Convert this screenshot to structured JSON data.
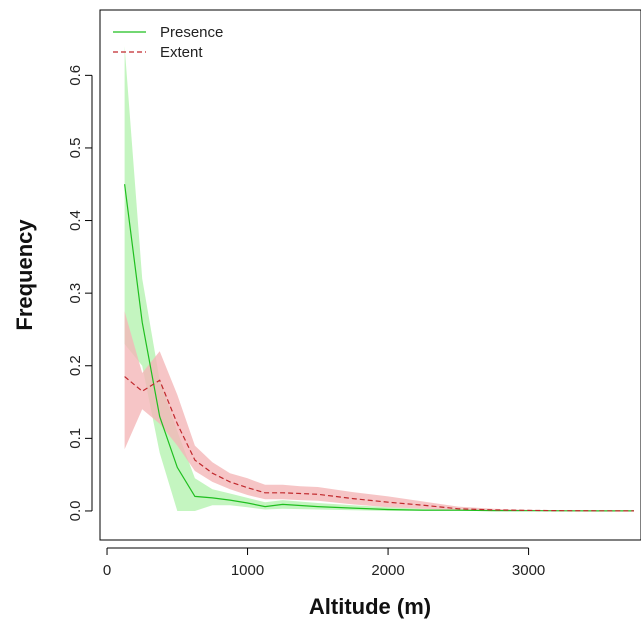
{
  "chart_data": {
    "type": "line",
    "xlabel": "Altitude (m)",
    "ylabel": "Frequency",
    "xlim": [
      -50,
      3800
    ],
    "ylim": [
      -0.04,
      0.69
    ],
    "xticks": [
      0,
      1000,
      2000,
      3000
    ],
    "yticks": [
      0.0,
      0.1,
      0.2,
      0.3,
      0.4,
      0.5,
      0.6
    ],
    "xtick_labels": [
      "0",
      "1000",
      "2000",
      "3000"
    ],
    "ytick_labels": [
      "0.0",
      "0.1",
      "0.2",
      "0.3",
      "0.4",
      "0.5",
      "0.6"
    ],
    "grid": false,
    "legend_position": "top-left",
    "series": [
      {
        "name": "Presence",
        "color": "#1fbf1f",
        "band_color": "#b5f2b0",
        "line_style": "solid",
        "x": [
          125,
          250,
          375,
          500,
          625,
          750,
          875,
          1000,
          1125,
          1250,
          1500,
          1750,
          2000,
          2250,
          2500,
          2750,
          3000,
          3250,
          3500,
          3750
        ],
        "y": [
          0.45,
          0.26,
          0.13,
          0.06,
          0.02,
          0.018,
          0.015,
          0.011,
          0.006,
          0.009,
          0.006,
          0.004,
          0.002,
          0.001,
          0.001,
          0.0005,
          0.0003,
          0.0002,
          0.0001,
          0.0001
        ],
        "lower": [
          0.23,
          0.2,
          0.08,
          0.0,
          0.0,
          0.008,
          0.008,
          0.005,
          0.002,
          0.003,
          0.002,
          0.001,
          0.0,
          0.0,
          0.0,
          0.0,
          0.0,
          0.0,
          0.0,
          0.0
        ],
        "upper": [
          0.64,
          0.32,
          0.18,
          0.11,
          0.045,
          0.03,
          0.024,
          0.018,
          0.012,
          0.015,
          0.011,
          0.008,
          0.005,
          0.003,
          0.002,
          0.001,
          0.0006,
          0.0004,
          0.0002,
          0.0002
        ]
      },
      {
        "name": "Extent",
        "color": "#c0282c",
        "band_color": "#f4b6b8",
        "line_style": "dashed",
        "x": [
          125,
          250,
          375,
          500,
          625,
          750,
          875,
          1000,
          1125,
          1250,
          1375,
          1500,
          1750,
          2000,
          2250,
          2500,
          2750,
          3000,
          3250,
          3500,
          3750
        ],
        "y": [
          0.185,
          0.165,
          0.18,
          0.12,
          0.07,
          0.052,
          0.04,
          0.032,
          0.025,
          0.025,
          0.024,
          0.023,
          0.017,
          0.012,
          0.008,
          0.003,
          0.0015,
          0.0008,
          0.0004,
          0.0002,
          0.0001
        ],
        "lower": [
          0.085,
          0.14,
          0.12,
          0.09,
          0.055,
          0.04,
          0.03,
          0.022,
          0.016,
          0.016,
          0.015,
          0.014,
          0.009,
          0.005,
          0.003,
          0.001,
          0.0004,
          0.0002,
          0.0,
          0.0,
          0.0
        ],
        "upper": [
          0.275,
          0.19,
          0.22,
          0.16,
          0.09,
          0.067,
          0.052,
          0.045,
          0.036,
          0.036,
          0.034,
          0.033,
          0.026,
          0.02,
          0.013,
          0.006,
          0.003,
          0.0015,
          0.0008,
          0.0004,
          0.0002
        ]
      }
    ]
  }
}
